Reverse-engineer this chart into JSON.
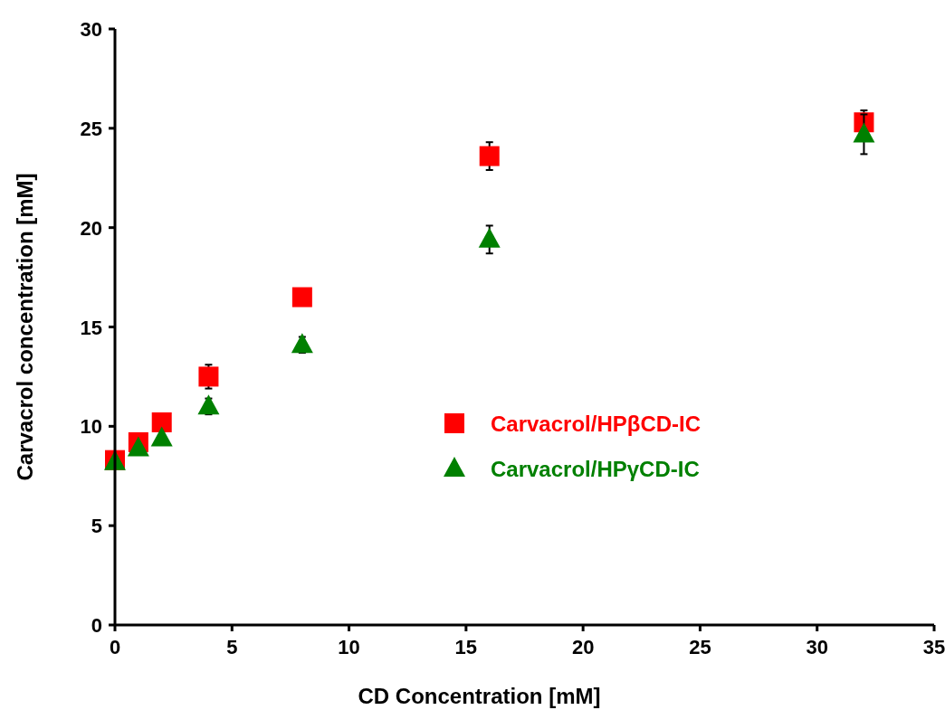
{
  "chart_data": {
    "type": "scatter",
    "xlabel": "CD Concentration [mM]",
    "ylabel": "Carvacrol concentration [mM]",
    "x": [
      0,
      1,
      2,
      4,
      8,
      16,
      32
    ],
    "xlim": [
      0,
      35
    ],
    "xticks": [
      0,
      5,
      10,
      15,
      20,
      25,
      30,
      35
    ],
    "ylim": [
      0,
      30
    ],
    "yticks": [
      0,
      5,
      10,
      15,
      20,
      25,
      30
    ],
    "legend": "right",
    "grid": false,
    "series": [
      {
        "name": "Carvacrol/HPβCD-IC",
        "color": "#ff0000",
        "marker": "square",
        "values": [
          8.3,
          9.2,
          10.2,
          12.5,
          16.5,
          23.6,
          25.3
        ],
        "errors": [
          null,
          null,
          null,
          0.6,
          null,
          0.7,
          0.6
        ]
      },
      {
        "name": "Carvacrol/HPγCD-IC",
        "color": "#008000",
        "marker": "triangle",
        "values": [
          8.2,
          8.9,
          9.4,
          11.0,
          14.1,
          19.4,
          24.7
        ],
        "errors": [
          null,
          null,
          null,
          0.4,
          0.4,
          0.7,
          1.0
        ]
      }
    ]
  }
}
